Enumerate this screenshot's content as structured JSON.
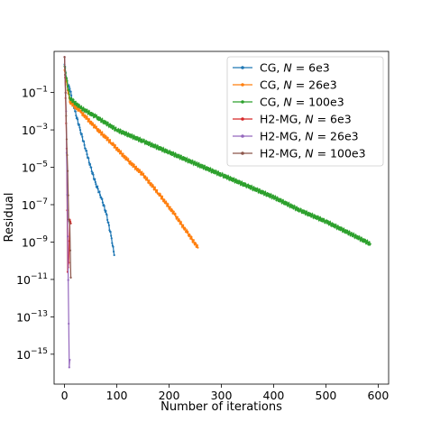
{
  "chart_data": {
    "type": "line",
    "title": "",
    "xlabel": "Number of iterations",
    "ylabel": "Residual",
    "xlim": [
      -20,
      620
    ],
    "ylim_log10": [
      -16.6,
      1.2
    ],
    "yscale": "log",
    "grid": false,
    "legend_position": "top-right",
    "x_ticks": [
      0,
      100,
      200,
      300,
      400,
      500,
      600
    ],
    "y_ticks": [
      {
        "exp": -1,
        "label_base": "10",
        "label_exp": "−1"
      },
      {
        "exp": -3,
        "label_base": "10",
        "label_exp": "−3"
      },
      {
        "exp": -5,
        "label_base": "10",
        "label_exp": "−5"
      },
      {
        "exp": -7,
        "label_base": "10",
        "label_exp": "−7"
      },
      {
        "exp": -9,
        "label_base": "10",
        "label_exp": "−9"
      },
      {
        "exp": -11,
        "label_base": "10",
        "label_exp": "−11"
      },
      {
        "exp": -13,
        "label_base": "10",
        "label_exp": "−13"
      },
      {
        "exp": -15,
        "label_base": "10",
        "label_exp": "−15"
      }
    ],
    "series": [
      {
        "prefix": "CG, ",
        "var": "N",
        "suffix": " = 6e3",
        "color": "#1f77b4",
        "points": [
          [
            0,
            0.5
          ],
          [
            5,
            -0.5
          ],
          [
            10,
            -0.8
          ],
          [
            20,
            -2
          ],
          [
            30,
            -3
          ],
          [
            40,
            -4
          ],
          [
            50,
            -5
          ],
          [
            60,
            -5.9
          ],
          [
            70,
            -6.6
          ],
          [
            80,
            -7.5
          ],
          [
            90,
            -8.8
          ],
          [
            95,
            -9.7
          ]
        ]
      },
      {
        "prefix": "CG, ",
        "var": "N",
        "suffix": " = 26e3",
        "color": "#ff7f0e",
        "points": [
          [
            0,
            0.2
          ],
          [
            10,
            -1.5
          ],
          [
            30,
            -2
          ],
          [
            60,
            -2.9
          ],
          [
            90,
            -3.7
          ],
          [
            120,
            -4.6
          ],
          [
            150,
            -5.4
          ],
          [
            180,
            -6.4
          ],
          [
            210,
            -7.5
          ],
          [
            235,
            -8.5
          ],
          [
            255,
            -9.3
          ]
        ]
      },
      {
        "prefix": "CG, ",
        "var": "N",
        "suffix": " = 100e3",
        "color": "#2ca02c",
        "points": [
          [
            0,
            0.4
          ],
          [
            10,
            -1.3
          ],
          [
            30,
            -1.8
          ],
          [
            60,
            -2.3
          ],
          [
            100,
            -3
          ],
          [
            150,
            -3.6
          ],
          [
            200,
            -4.2
          ],
          [
            250,
            -4.8
          ],
          [
            300,
            -5.4
          ],
          [
            350,
            -6
          ],
          [
            400,
            -6.6
          ],
          [
            450,
            -7.3
          ],
          [
            500,
            -7.9
          ],
          [
            550,
            -8.6
          ],
          [
            585,
            -9.1
          ]
        ]
      },
      {
        "prefix": "H2-MG, ",
        "var": "N",
        "suffix": " = 6e3",
        "color": "#d62728",
        "points": [
          [
            0,
            0.9
          ],
          [
            2,
            -1.3
          ],
          [
            4,
            -4
          ],
          [
            6,
            -10.6
          ],
          [
            8,
            -10.1
          ],
          [
            10,
            -7.8
          ],
          [
            12,
            -8
          ]
        ]
      },
      {
        "prefix": "H2-MG, ",
        "var": "N",
        "suffix": " = 26e3",
        "color": "#9467bd",
        "points": [
          [
            0,
            0.9
          ],
          [
            3,
            -2
          ],
          [
            6,
            -8.7
          ],
          [
            9,
            -15.7
          ],
          [
            10,
            -15.3
          ]
        ]
      },
      {
        "prefix": "H2-MG, ",
        "var": "N",
        "suffix": " = 100e3",
        "color": "#8c564b",
        "points": [
          [
            0,
            0.9
          ],
          [
            2,
            -1
          ],
          [
            4,
            -3.5
          ],
          [
            6,
            -5.2
          ],
          [
            8,
            -7.8
          ],
          [
            10,
            -8
          ],
          [
            12,
            -10.9
          ]
        ]
      }
    ]
  }
}
